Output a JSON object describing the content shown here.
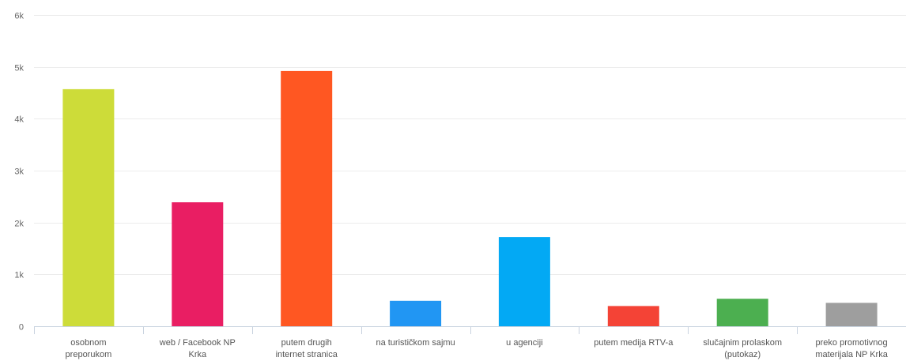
{
  "chart_data": {
    "type": "bar",
    "title": "",
    "xlabel": "",
    "ylabel": "",
    "ylim": [
      0,
      6000
    ],
    "yticks": [
      0,
      1000,
      2000,
      3000,
      4000,
      5000,
      6000
    ],
    "ytick_labels": [
      "0",
      "1k",
      "2k",
      "3k",
      "4k",
      "5k",
      "6k"
    ],
    "grid": true,
    "legend": "none",
    "categories": [
      [
        "osobnom",
        "preporukom"
      ],
      [
        "web / Facebook NP",
        "Krka"
      ],
      [
        "putem drugih",
        "internet stranica"
      ],
      [
        "na turističkom sajmu"
      ],
      [
        "u agenciji"
      ],
      [
        "putem medija RTV-a"
      ],
      [
        "slučajnim prolaskom",
        "(putokaz)"
      ],
      [
        "preko promotivnog",
        "materijala NP Krka"
      ]
    ],
    "values": [
      4570,
      2390,
      4920,
      490,
      1720,
      390,
      530,
      450
    ],
    "colors": [
      "#cddc39",
      "#e91e63",
      "#ff5722",
      "#2196f3",
      "#03a9f4",
      "#f44336",
      "#4caf50",
      "#9e9e9e"
    ]
  }
}
